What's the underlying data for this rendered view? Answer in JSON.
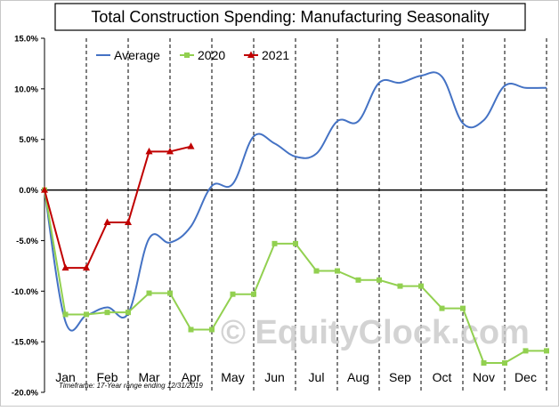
{
  "chart_data": {
    "type": "line",
    "title": "Total Construction Spending: Manufacturing Seasonality",
    "categories": [
      "Jan",
      "Feb",
      "Mar",
      "Apr",
      "May",
      "Jun",
      "Jul",
      "Aug",
      "Sep",
      "Oct",
      "Nov",
      "Dec"
    ],
    "y_ticks": [
      "15.0%",
      "10.0%",
      "5.0%",
      "0.0%",
      "-5.0%",
      "-10.0%",
      "-15.0%",
      "-20.0%"
    ],
    "ylim": [
      -20,
      15
    ],
    "y_tick_step": 5,
    "x_range": [
      0,
      12
    ],
    "grid": "vertical dashed at month boundaries",
    "legend_position": "top-left",
    "timeframe_note": "Timeframe: 17-Year range ending 12/31/2019",
    "watermark": "© EquityClock.com",
    "series": [
      {
        "name": "Average",
        "color": "#4472c4",
        "marker": "none",
        "x": [
          0,
          0.5,
          1,
          1.5,
          2,
          2.5,
          3,
          3.5,
          4,
          4.5,
          5,
          5.5,
          6,
          6.5,
          7,
          7.5,
          8,
          8.5,
          9,
          9.5,
          10,
          10.5,
          11,
          11.5,
          12
        ],
        "values": [
          0,
          -13,
          -12.4,
          -11.6,
          -12.2,
          -4.8,
          -5.2,
          -3.6,
          0.4,
          0.6,
          5.3,
          4.6,
          3.3,
          3.6,
          6.8,
          6.8,
          10.6,
          10.6,
          11.3,
          11.2,
          6.6,
          6.9,
          10.3,
          10.1,
          10.1
        ]
      },
      {
        "name": "2020",
        "color": "#92d050",
        "marker": "square",
        "x": [
          0,
          0.5,
          1,
          1.5,
          2,
          2.5,
          3,
          3.5,
          4,
          4.5,
          5,
          5.5,
          6,
          6.5,
          7,
          7.5,
          8,
          8.5,
          9,
          9.5,
          10,
          10.5,
          11,
          11.5,
          12
        ],
        "values": [
          0,
          -12.3,
          -12.3,
          -12.1,
          -12.1,
          -10.2,
          -10.2,
          -13.8,
          -13.8,
          -10.3,
          -10.3,
          -5.3,
          -5.3,
          -8.0,
          -8.0,
          -8.9,
          -8.9,
          -9.5,
          -9.5,
          -11.7,
          -11.7,
          -17.1,
          -17.1,
          -15.9,
          -15.9
        ]
      },
      {
        "name": "2021",
        "color": "#c00000",
        "marker": "triangle",
        "x": [
          0,
          0.5,
          1,
          1.5,
          2,
          2.5,
          3,
          3.5
        ],
        "values": [
          0,
          -7.7,
          -7.7,
          -3.2,
          -3.2,
          3.8,
          3.8,
          4.3
        ]
      }
    ]
  }
}
